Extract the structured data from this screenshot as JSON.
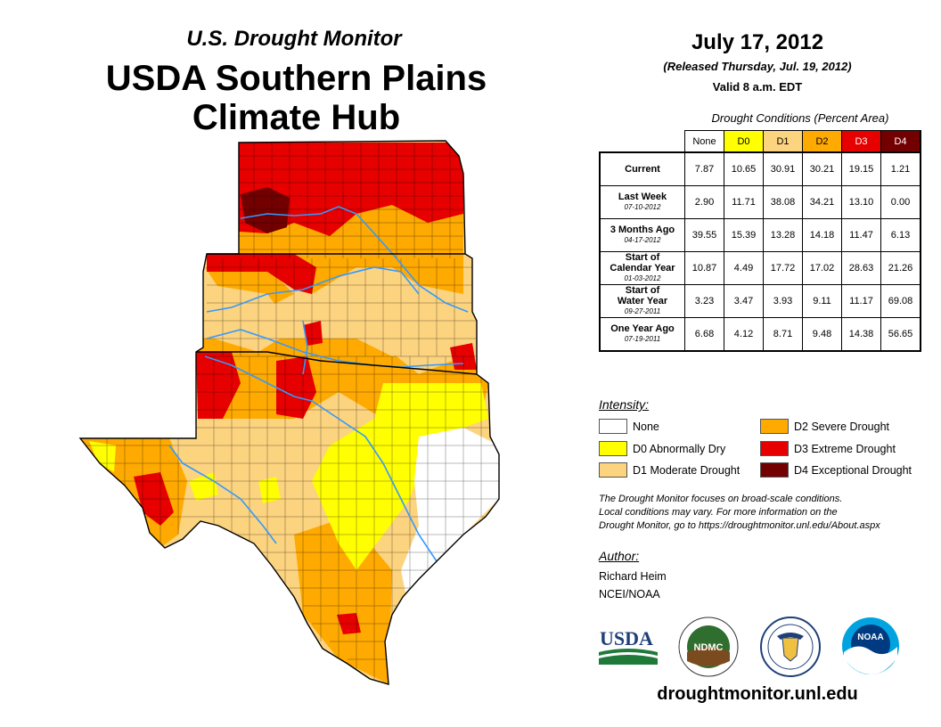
{
  "header": {
    "subtitle": "U.S. Drought Monitor",
    "title_line1": "USDA Southern Plains",
    "title_line2": "Climate Hub"
  },
  "report": {
    "date": "July 17, 2012",
    "released": "(Released Thursday, Jul. 19, 2012)",
    "valid": "Valid 8 a.m. EDT"
  },
  "table": {
    "caption": "Drought Conditions (Percent Area)",
    "columns": [
      {
        "label": "None",
        "color": "#ffffff",
        "text": "#000000"
      },
      {
        "label": "D0",
        "color": "#ffff00",
        "text": "#000000"
      },
      {
        "label": "D1",
        "color": "#fcd37f",
        "text": "#000000"
      },
      {
        "label": "D2",
        "color": "#ffaa00",
        "text": "#000000"
      },
      {
        "label": "D3",
        "color": "#e60000",
        "text": "#ffffff"
      },
      {
        "label": "D4",
        "color": "#730000",
        "text": "#ffffff"
      }
    ],
    "rows": [
      {
        "label": [
          "Current"
        ],
        "sub": "",
        "values": [
          "7.87",
          "10.65",
          "30.91",
          "30.21",
          "19.15",
          "1.21"
        ]
      },
      {
        "label": [
          "Last Week"
        ],
        "sub": "07-10-2012",
        "values": [
          "2.90",
          "11.71",
          "38.08",
          "34.21",
          "13.10",
          "0.00"
        ]
      },
      {
        "label": [
          "3 Months Ago"
        ],
        "sub": "04-17-2012",
        "values": [
          "39.55",
          "15.39",
          "13.28",
          "14.18",
          "11.47",
          "6.13"
        ]
      },
      {
        "label": [
          "Start of",
          "Calendar Year"
        ],
        "sub": "01-03-2012",
        "values": [
          "10.87",
          "4.49",
          "17.72",
          "17.02",
          "28.63",
          "21.26"
        ]
      },
      {
        "label": [
          "Start of",
          "Water Year"
        ],
        "sub": "09-27-2011",
        "values": [
          "3.23",
          "3.47",
          "3.93",
          "9.11",
          "11.17",
          "69.08"
        ]
      },
      {
        "label": [
          "One Year Ago"
        ],
        "sub": "07-19-2011",
        "values": [
          "6.68",
          "4.12",
          "8.71",
          "9.48",
          "14.38",
          "56.65"
        ]
      }
    ]
  },
  "legend": {
    "title": "Intensity:",
    "items": [
      {
        "label": "None",
        "color": "#ffffff"
      },
      {
        "label": "D0 Abnormally Dry",
        "color": "#ffff00"
      },
      {
        "label": "D1 Moderate Drought",
        "color": "#fcd37f"
      },
      {
        "label": "D2 Severe Drought",
        "color": "#ffaa00"
      },
      {
        "label": "D3 Extreme Drought",
        "color": "#e60000"
      },
      {
        "label": "D4 Exceptional Drought",
        "color": "#730000"
      }
    ]
  },
  "note": {
    "line1": "The Drought Monitor focuses on broad-scale conditions.",
    "line2": "Local conditions may vary. For more information on the",
    "line3": "Drought Monitor, go to https://droughtmonitor.unl.edu/About.aspx"
  },
  "author": {
    "label": "Author:",
    "name": "Richard Heim",
    "org": "NCEI/NOAA"
  },
  "logos": {
    "usda": "USDA",
    "ndmc": "NDMC",
    "noaa": "NOAA"
  },
  "website": "droughtmonitor.unl.edu"
}
